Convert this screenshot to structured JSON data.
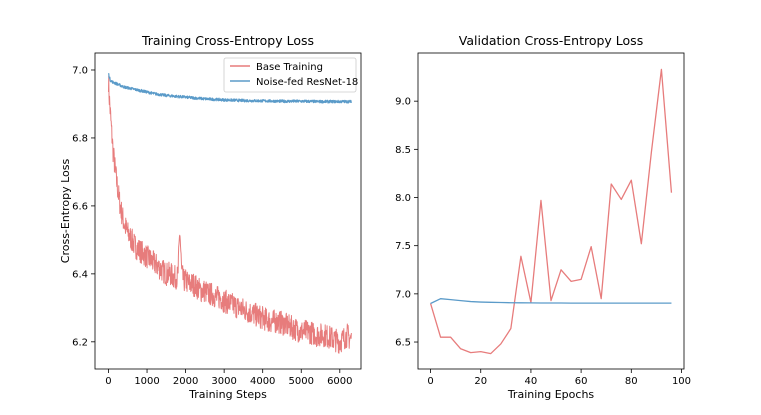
{
  "chart_data": [
    {
      "type": "line",
      "title": "Training Cross-Entropy Loss",
      "xlabel": "Training Steps",
      "ylabel": "Cross-Entropy Loss",
      "xlim": [
        -350,
        6550
      ],
      "ylim": [
        6.12,
        7.05
      ],
      "xticks": [
        0,
        1000,
        2000,
        3000,
        4000,
        5000,
        6000
      ],
      "yticks": [
        6.2,
        6.4,
        6.6,
        6.8,
        7.0
      ],
      "ytick_labels": [
        "6.2",
        "6.4",
        "6.6",
        "6.8",
        "7.0"
      ],
      "grid": false,
      "legend_position": "top-right",
      "series": [
        {
          "name": "Base Training",
          "color": "#e77c7c",
          "x": [
            0,
            20,
            50,
            80,
            120,
            180,
            250,
            320,
            400,
            500,
            600,
            700,
            800,
            900,
            1000,
            1100,
            1200,
            1300,
            1400,
            1500,
            1600,
            1700,
            1800,
            1850,
            1900,
            1950,
            2000,
            2100,
            2200,
            2300,
            2400,
            2500,
            2600,
            2700,
            2800,
            2900,
            3000,
            3200,
            3400,
            3600,
            3800,
            4000,
            4200,
            4400,
            4600,
            4800,
            5000,
            5200,
            5400,
            5600,
            5800,
            6000,
            6100,
            6200,
            6250,
            6300
          ],
          "values": [
            6.97,
            6.92,
            6.87,
            6.82,
            6.76,
            6.7,
            6.64,
            6.59,
            6.55,
            6.52,
            6.5,
            6.48,
            6.47,
            6.46,
            6.45,
            6.44,
            6.43,
            6.42,
            6.41,
            6.4,
            6.4,
            6.39,
            6.39,
            6.53,
            6.4,
            6.38,
            6.38,
            6.37,
            6.37,
            6.36,
            6.35,
            6.35,
            6.34,
            6.34,
            6.33,
            6.33,
            6.32,
            6.31,
            6.3,
            6.29,
            6.28,
            6.27,
            6.26,
            6.26,
            6.25,
            6.24,
            6.23,
            6.23,
            6.22,
            6.22,
            6.21,
            6.2,
            6.21,
            6.22,
            6.21,
            6.21
          ],
          "noise_amplitude": 0.035
        },
        {
          "name": "Noise-fed ResNet-18",
          "color": "#5b9bc9",
          "x": [
            0,
            20,
            50,
            100,
            200,
            300,
            400,
            600,
            800,
            1000,
            1200,
            1500,
            2000,
            2500,
            3000,
            3500,
            4000,
            4500,
            5000,
            5500,
            6000,
            6300
          ],
          "values": [
            6.99,
            6.98,
            6.97,
            6.965,
            6.96,
            6.955,
            6.95,
            6.945,
            6.94,
            6.935,
            6.93,
            6.925,
            6.92,
            6.915,
            6.912,
            6.91,
            6.909,
            6.908,
            6.908,
            6.907,
            6.907,
            6.907
          ],
          "noise_amplitude": 0.004
        }
      ]
    },
    {
      "type": "line",
      "title": "Validation Cross-Entropy Loss",
      "xlabel": "Training Epochs",
      "ylabel": "",
      "xlim": [
        -5,
        101
      ],
      "ylim": [
        6.22,
        9.5
      ],
      "xticks": [
        0,
        20,
        40,
        60,
        80,
        100
      ],
      "yticks": [
        6.5,
        7.0,
        7.5,
        8.0,
        8.5,
        9.0
      ],
      "ytick_labels": [
        "6.5",
        "7.0",
        "7.5",
        "8.0",
        "8.5",
        "9.0"
      ],
      "grid": false,
      "series": [
        {
          "name": "Base Training",
          "color": "#e77c7c",
          "x": [
            0,
            4,
            8,
            12,
            16,
            20,
            24,
            28,
            32,
            36,
            40,
            44,
            48,
            52,
            56,
            60,
            64,
            68,
            72,
            76,
            80,
            84,
            88,
            92,
            96
          ],
          "values": [
            6.9,
            6.55,
            6.55,
            6.43,
            6.39,
            6.4,
            6.38,
            6.48,
            6.64,
            7.39,
            6.91,
            7.97,
            6.93,
            7.25,
            7.13,
            7.15,
            7.49,
            6.95,
            8.14,
            7.98,
            8.18,
            7.52,
            8.47,
            9.33,
            8.05
          ],
          "noise_amplitude": 0
        },
        {
          "name": "Noise-fed ResNet-18",
          "color": "#5b9bc9",
          "x": [
            0,
            4,
            8,
            12,
            16,
            20,
            24,
            28,
            32,
            36,
            40,
            44,
            48,
            52,
            56,
            60,
            64,
            68,
            72,
            76,
            80,
            84,
            88,
            92,
            96
          ],
          "values": [
            6.9,
            6.95,
            6.94,
            6.93,
            6.92,
            6.915,
            6.912,
            6.91,
            6.908,
            6.907,
            6.906,
            6.905,
            6.905,
            6.905,
            6.904,
            6.904,
            6.904,
            6.904,
            6.904,
            6.904,
            6.904,
            6.904,
            6.904,
            6.904,
            6.904
          ],
          "noise_amplitude": 0
        }
      ]
    }
  ]
}
